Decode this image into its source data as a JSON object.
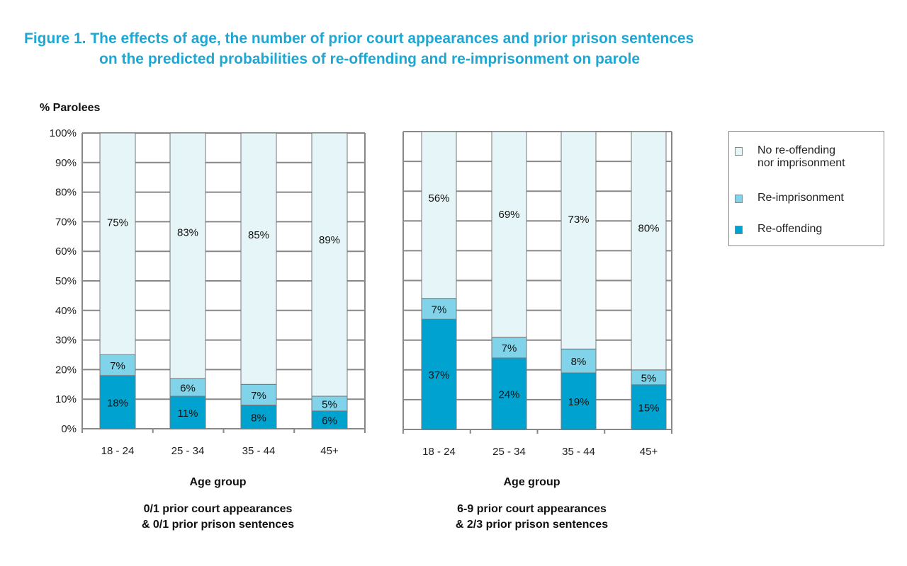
{
  "title": {
    "line1": "Figure 1. The effects of age, the number of prior court appearances and prior prison sentences",
    "line2": "on the predicted probabilities of re-offending and re-imprisonment on parole"
  },
  "colors": {
    "title": "#1ea7d2",
    "re_offending": "#00a3cf",
    "re_imprisonment": "#80d3e8",
    "none": "#e6f5f7",
    "grid": "#888888"
  },
  "legend": {
    "items": [
      {
        "label_line1": "No re-offending",
        "label_line2": "nor imprisonment",
        "color": "#e6f5f7"
      },
      {
        "label_line1": "Re-imprisonment",
        "label_line2": "",
        "color": "#80d3e8"
      },
      {
        "label_line1": "Re-offending",
        "label_line2": "",
        "color": "#00a3cf"
      }
    ]
  },
  "chart_data": [
    {
      "type": "bar",
      "stacked": true,
      "ylabel": "% Parolees",
      "xlabel": "Age group",
      "subtitle_line1": "0/1 prior court appearances",
      "subtitle_line2": "& 0/1 prior prison sentences",
      "ylim": [
        0,
        100
      ],
      "yticks": [
        "0%",
        "10%",
        "20%",
        "30%",
        "40%",
        "50%",
        "60%",
        "70%",
        "80%",
        "90%",
        "100%"
      ],
      "grid": true,
      "categories": [
        "18 - 24",
        "25 - 34",
        "35 - 44",
        "45+"
      ],
      "series": [
        {
          "name": "Re-offending",
          "values": [
            18,
            11,
            8,
            6
          ],
          "labels": [
            "18%",
            "11%",
            "8%",
            "6%"
          ]
        },
        {
          "name": "Re-imprisonment",
          "values": [
            7,
            6,
            7,
            5
          ],
          "labels": [
            "7%",
            "6%",
            "7%",
            "5%"
          ]
        },
        {
          "name": "No re-offending nor imprisonment",
          "values": [
            75,
            83,
            85,
            89
          ],
          "labels": [
            "75%",
            "83%",
            "85%",
            "89%"
          ]
        }
      ]
    },
    {
      "type": "bar",
      "stacked": true,
      "xlabel": "Age group",
      "subtitle_line1": "6-9 prior court appearances",
      "subtitle_line2": "& 2/3 prior prison sentences",
      "ylim": [
        0,
        100
      ],
      "grid": true,
      "categories": [
        "18 - 24",
        "25 - 34",
        "35 - 44",
        "45+"
      ],
      "series": [
        {
          "name": "Re-offending",
          "values": [
            37,
            24,
            19,
            15
          ],
          "labels": [
            "37%",
            "24%",
            "19%",
            "15%"
          ]
        },
        {
          "name": "Re-imprisonment",
          "values": [
            7,
            7,
            8,
            5
          ],
          "labels": [
            "7%",
            "7%",
            "8%",
            "5%"
          ]
        },
        {
          "name": "No re-offending nor imprisonment",
          "values": [
            56,
            69,
            73,
            80
          ],
          "labels": [
            "56%",
            "69%",
            "73%",
            "80%"
          ]
        }
      ]
    }
  ]
}
